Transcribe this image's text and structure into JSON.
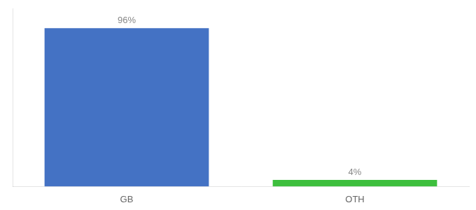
{
  "chart_data": {
    "type": "bar",
    "categories": [
      "GB",
      "OTH"
    ],
    "values": [
      96,
      4
    ],
    "value_labels": [
      "96%",
      "4%"
    ],
    "colors": [
      "#4472c4",
      "#3dbf3d"
    ],
    "ylim": [
      0,
      108
    ],
    "data_labels": true,
    "grid": false,
    "tick_labels": "x"
  }
}
